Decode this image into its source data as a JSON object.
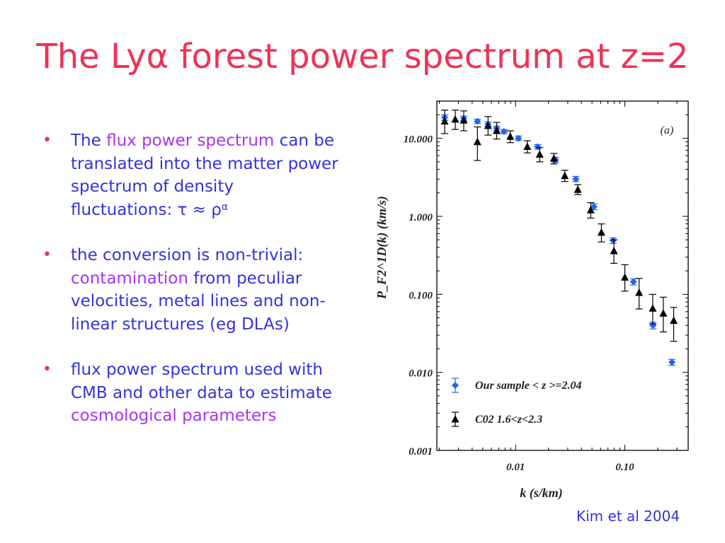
{
  "slide": {
    "title": "The Lyα forest power spectrum at z=2",
    "bullets": [
      {
        "segments": [
          {
            "text": "The ",
            "hl": false
          },
          {
            "text": "flux power spectrum",
            "hl": true
          },
          {
            "text": " can be translated into the matter power spectrum of density fluctuations: τ ≈ ρ",
            "hl": false
          },
          {
            "text": "α",
            "hl": false,
            "sup": true
          }
        ]
      },
      {
        "segments": [
          {
            "text": "the conversion is non-trivial: ",
            "hl": false
          },
          {
            "text": "contamination",
            "hl": true
          },
          {
            "text": " from peculiar velocities, metal lines and non-linear structures (eg DLAs)",
            "hl": false
          }
        ]
      },
      {
        "segments": [
          {
            "text": "flux power spectrum used with CMB and other data to estimate ",
            "hl": false
          },
          {
            "text": "cosmological parameters",
            "hl": true
          }
        ]
      }
    ],
    "citation": "Kim et al 2004"
  },
  "colors": {
    "title": "#ee3355",
    "text": "#3333dd",
    "highlight": "#aa33ee",
    "series_ours": "#2266ee",
    "series_c02": "#000000"
  },
  "chart_data": {
    "type": "scatter",
    "panel_label": "(a)",
    "xlabel": "k (s/km)",
    "ylabel": "P_F2^1D(k) (km/s)",
    "xscale": "log",
    "yscale": "log",
    "xlim": [
      0.0019,
      0.38
    ],
    "ylim": [
      0.001,
      30
    ],
    "xticks": [
      {
        "value": 0.01,
        "label": "0.01"
      },
      {
        "value": 0.1,
        "label": "0.10"
      }
    ],
    "yticks": [
      {
        "value": 10,
        "label": "10.000"
      },
      {
        "value": 1,
        "label": "1.000"
      },
      {
        "value": 0.1,
        "label": "0.100"
      },
      {
        "value": 0.01,
        "label": "0.010"
      },
      {
        "value": 0.001,
        "label": "0.001"
      }
    ],
    "legend_position": "bottom-left",
    "series": [
      {
        "name": "Our sample < z >=2.04",
        "marker": "diamond",
        "points": [
          {
            "x": 0.00224,
            "y": 18.5,
            "lo": 17.0,
            "hi": 20.0
          },
          {
            "x": 0.00335,
            "y": 18.0,
            "lo": 16.8,
            "hi": 19.2
          },
          {
            "x": 0.00447,
            "y": 16.5,
            "lo": 15.5,
            "hi": 17.5
          },
          {
            "x": 0.00559,
            "y": 15.2,
            "lo": 14.2,
            "hi": 16.2
          },
          {
            "x": 0.00671,
            "y": 13.5,
            "lo": 12.7,
            "hi": 14.3
          },
          {
            "x": 0.00782,
            "y": 12.2,
            "lo": 11.5,
            "hi": 13.0
          },
          {
            "x": 0.0106,
            "y": 10.0,
            "lo": 9.4,
            "hi": 10.7
          },
          {
            "x": 0.0159,
            "y": 7.8,
            "lo": 7.3,
            "hi": 8.3
          },
          {
            "x": 0.0232,
            "y": 5.3,
            "lo": 4.9,
            "hi": 5.7
          },
          {
            "x": 0.0356,
            "y": 3.0,
            "lo": 2.8,
            "hi": 3.25
          },
          {
            "x": 0.0521,
            "y": 1.33,
            "lo": 1.22,
            "hi": 1.45
          },
          {
            "x": 0.0781,
            "y": 0.49,
            "lo": 0.45,
            "hi": 0.53
          },
          {
            "x": 0.12,
            "y": 0.145,
            "lo": 0.132,
            "hi": 0.158
          },
          {
            "x": 0.181,
            "y": 0.04,
            "lo": 0.036,
            "hi": 0.044
          },
          {
            "x": 0.27,
            "y": 0.0135,
            "lo": 0.0123,
            "hi": 0.0147
          }
        ]
      },
      {
        "name": "C02 1.6<z<2.3",
        "marker": "triangle",
        "points": [
          {
            "x": 0.00224,
            "y": 16.5,
            "lo": 11.5,
            "hi": 23.0
          },
          {
            "x": 0.0028,
            "y": 17.5,
            "lo": 13.0,
            "hi": 23.0
          },
          {
            "x": 0.00335,
            "y": 17.0,
            "lo": 12.5,
            "hi": 22.5
          },
          {
            "x": 0.00447,
            "y": 9.0,
            "lo": 5.2,
            "hi": 14.0
          },
          {
            "x": 0.00559,
            "y": 14.5,
            "lo": 11.0,
            "hi": 19.0
          },
          {
            "x": 0.00671,
            "y": 12.5,
            "lo": 9.8,
            "hi": 16.0
          },
          {
            "x": 0.00894,
            "y": 10.5,
            "lo": 8.8,
            "hi": 12.5
          },
          {
            "x": 0.0128,
            "y": 7.8,
            "lo": 6.5,
            "hi": 9.3
          },
          {
            "x": 0.0166,
            "y": 6.2,
            "lo": 5.0,
            "hi": 7.6
          },
          {
            "x": 0.0224,
            "y": 5.5,
            "lo": 4.7,
            "hi": 6.4
          },
          {
            "x": 0.0282,
            "y": 3.3,
            "lo": 2.8,
            "hi": 3.9
          },
          {
            "x": 0.0371,
            "y": 2.2,
            "lo": 1.9,
            "hi": 2.55
          },
          {
            "x": 0.0487,
            "y": 1.2,
            "lo": 0.95,
            "hi": 1.5
          },
          {
            "x": 0.061,
            "y": 0.62,
            "lo": 0.47,
            "hi": 0.8
          },
          {
            "x": 0.0794,
            "y": 0.36,
            "lo": 0.25,
            "hi": 0.5
          },
          {
            "x": 0.1,
            "y": 0.165,
            "lo": 0.11,
            "hi": 0.24
          },
          {
            "x": 0.135,
            "y": 0.105,
            "lo": 0.065,
            "hi": 0.16
          },
          {
            "x": 0.18,
            "y": 0.066,
            "lo": 0.042,
            "hi": 0.1
          },
          {
            "x": 0.225,
            "y": 0.057,
            "lo": 0.033,
            "hi": 0.092
          },
          {
            "x": 0.28,
            "y": 0.046,
            "lo": 0.025,
            "hi": 0.068
          }
        ]
      }
    ]
  }
}
